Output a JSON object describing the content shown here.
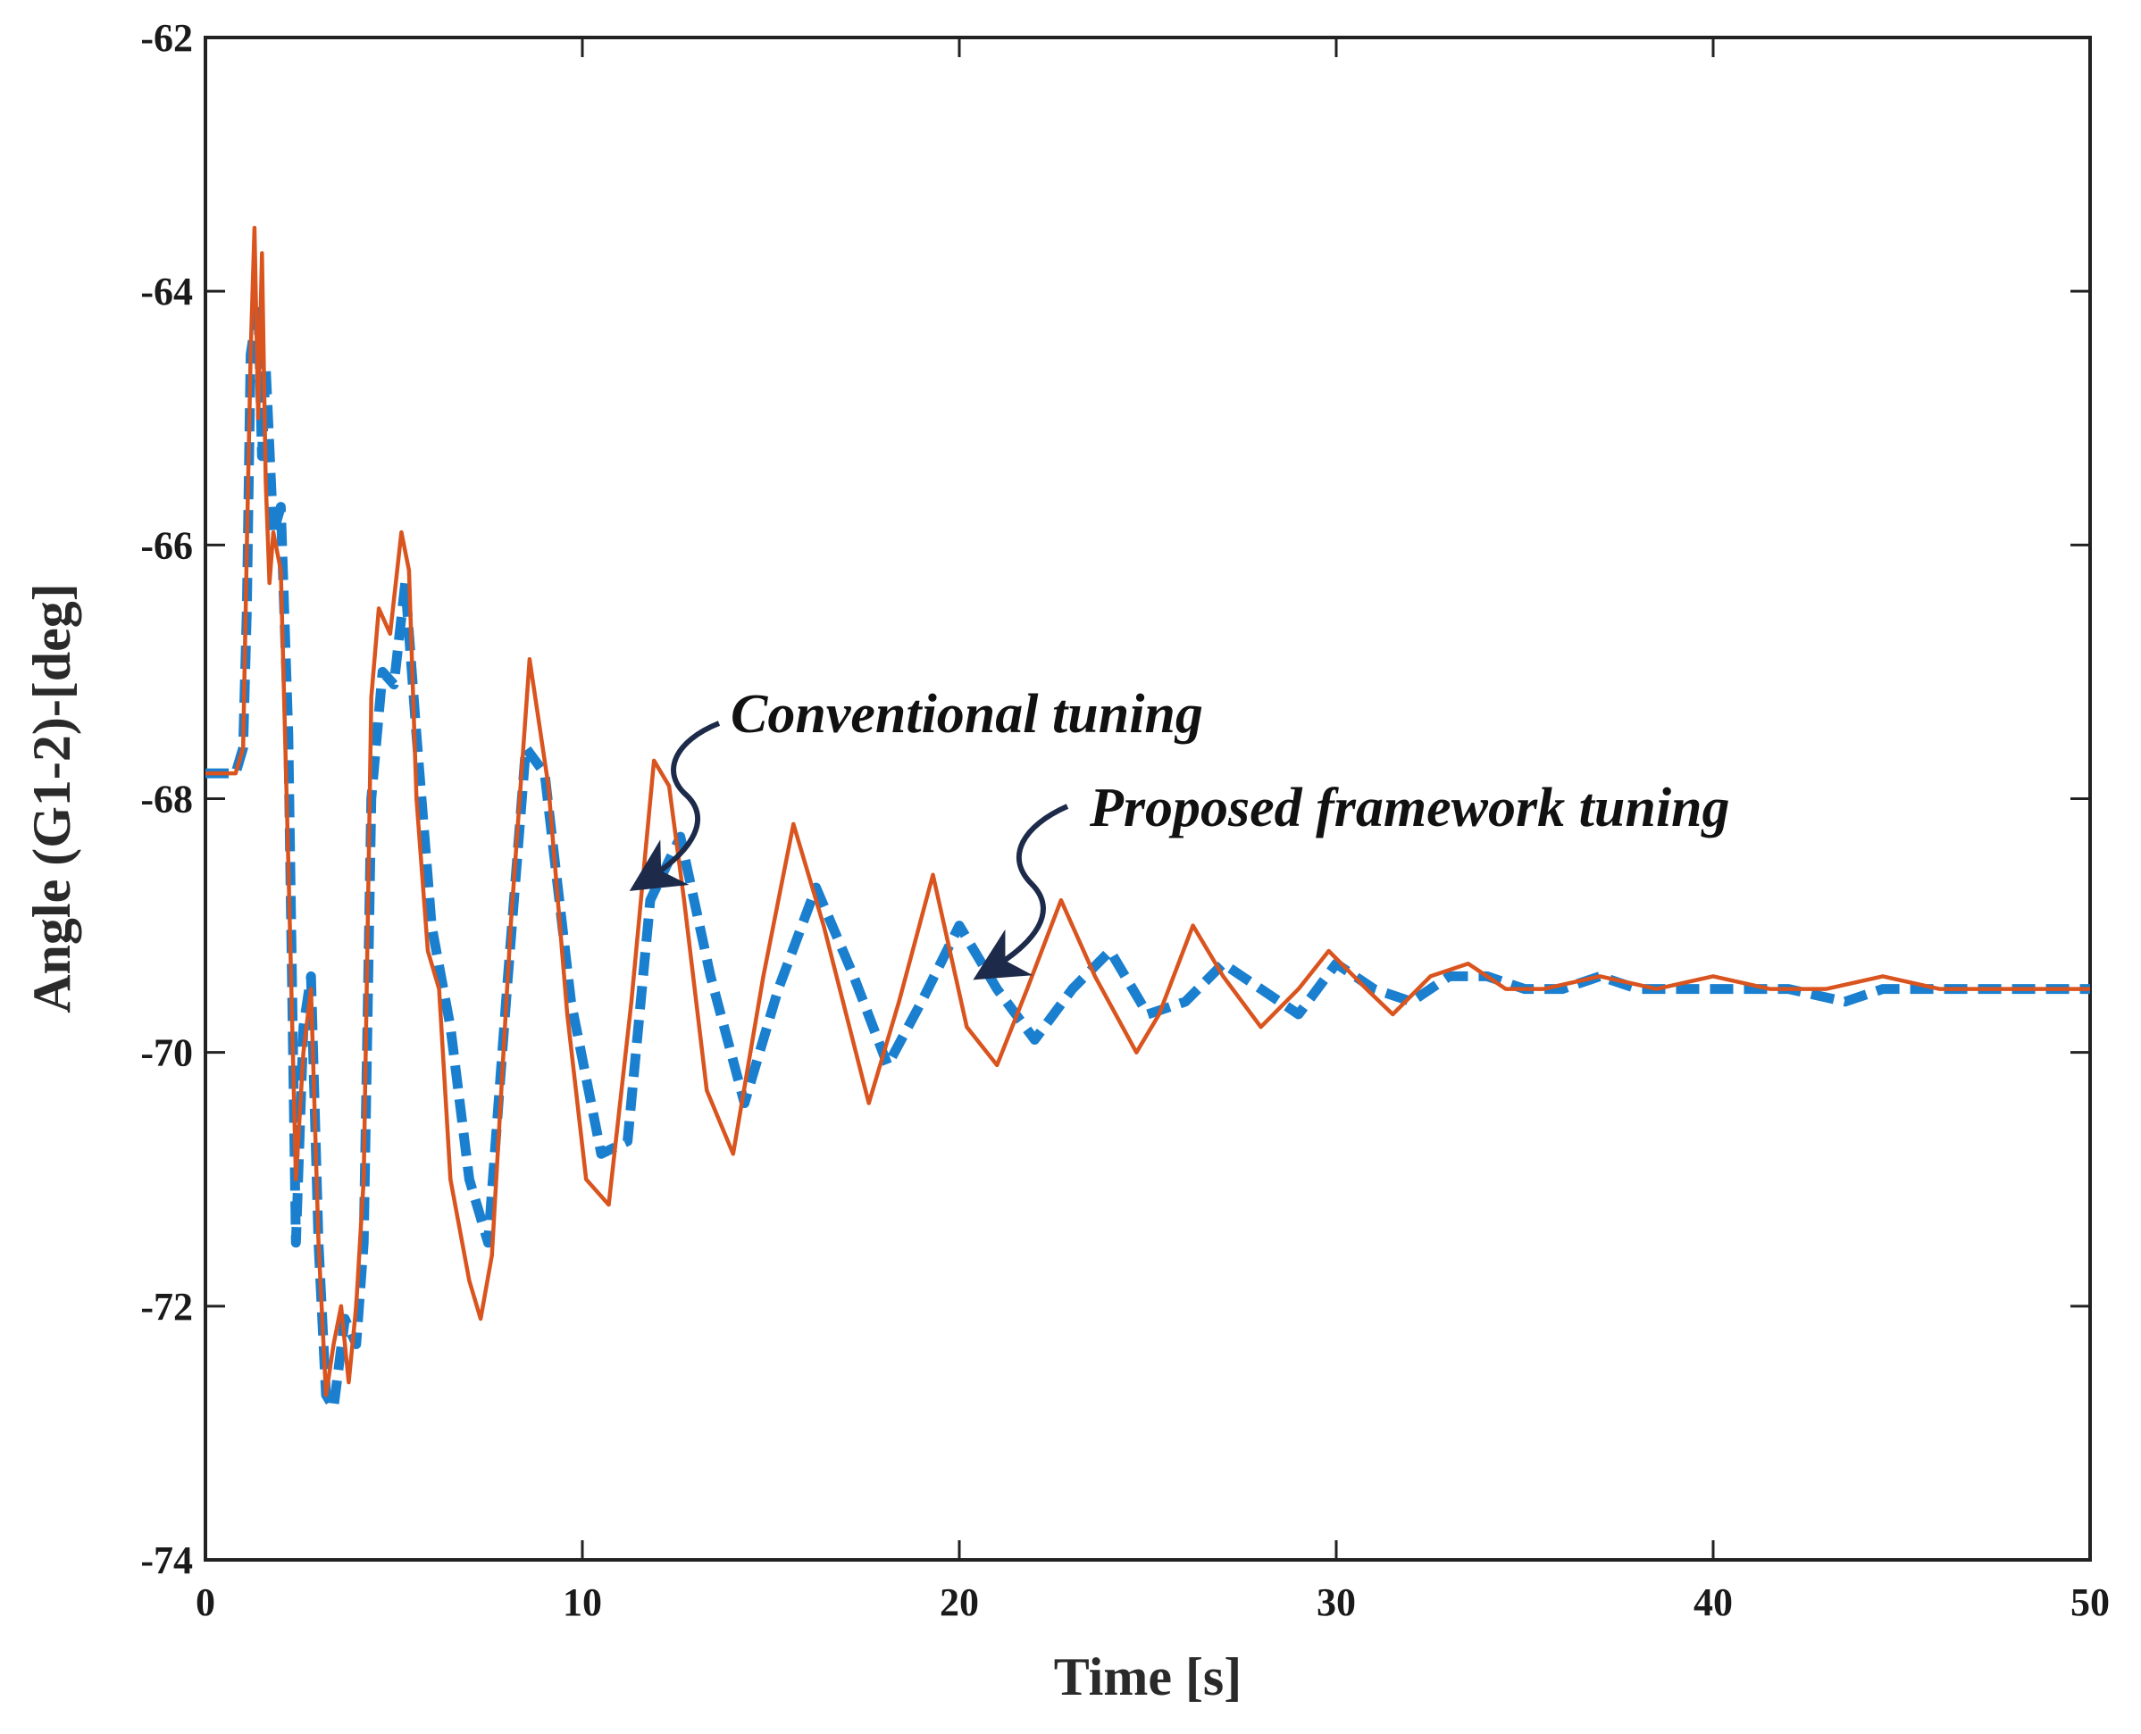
{
  "chart_data": {
    "type": "line",
    "title": "",
    "xlabel": "Time [s]",
    "ylabel": "Angle (G1-2)-[deg]",
    "xlim": [
      0,
      50
    ],
    "ylim": [
      -74,
      -62
    ],
    "xticks": [
      0,
      10,
      20,
      30,
      40,
      50
    ],
    "yticks": [
      -74,
      -72,
      -70,
      -68,
      -66,
      -64,
      -62
    ],
    "grid": false,
    "series": [
      {
        "name": "Conventional tuning",
        "style": "solid",
        "color": "#d9541e",
        "x": [
          0,
          0.8,
          1.0,
          1.1,
          1.2,
          1.3,
          1.4,
          1.5,
          1.6,
          1.7,
          1.8,
          2.0,
          2.2,
          2.4,
          2.6,
          2.8,
          3.0,
          3.2,
          3.4,
          3.6,
          3.8,
          4.0,
          4.2,
          4.4,
          4.6,
          4.9,
          5.2,
          5.4,
          5.6,
          5.9,
          6.2,
          6.5,
          7.0,
          7.3,
          7.6,
          8.1,
          8.6,
          9.1,
          9.6,
          10.1,
          10.7,
          11.3,
          11.9,
          12.3,
          12.7,
          13.3,
          14.0,
          14.8,
          15.6,
          16.4,
          17.6,
          18.4,
          19.3,
          20.2,
          21.0,
          21.8,
          22.7,
          23.6,
          24.7,
          25.3,
          26.2,
          27.0,
          28.0,
          29.0,
          29.8,
          30.8,
          31.5,
          32.5,
          33.5,
          34.5,
          35.5,
          37.0,
          38.5,
          40.0,
          41.5,
          43.0,
          44.5,
          46.0,
          48.0,
          50.0
        ],
        "values": [
          -67.8,
          -67.8,
          -67.6,
          -66.0,
          -64.5,
          -63.5,
          -65.0,
          -63.7,
          -65.5,
          -66.3,
          -65.9,
          -66.2,
          -68.5,
          -71.0,
          -70.0,
          -69.5,
          -71.5,
          -72.7,
          -72.3,
          -72.0,
          -72.6,
          -72.0,
          -71.0,
          -67.2,
          -66.5,
          -66.7,
          -65.9,
          -66.2,
          -68.0,
          -69.2,
          -69.5,
          -71.0,
          -71.8,
          -72.1,
          -71.6,
          -69.0,
          -66.9,
          -67.9,
          -69.7,
          -71.0,
          -71.2,
          -69.6,
          -67.7,
          -67.9,
          -68.8,
          -70.3,
          -70.8,
          -69.4,
          -68.2,
          -69.0,
          -70.4,
          -69.6,
          -68.6,
          -69.8,
          -70.1,
          -69.5,
          -68.8,
          -69.4,
          -70.0,
          -69.7,
          -69.0,
          -69.4,
          -69.8,
          -69.5,
          -69.2,
          -69.5,
          -69.7,
          -69.4,
          -69.3,
          -69.5,
          -69.5,
          -69.4,
          -69.5,
          -69.4,
          -69.5,
          -69.5,
          -69.4,
          -69.5,
          -69.5,
          -69.5
        ]
      },
      {
        "name": "Proposed framework tuning",
        "style": "dashed",
        "color": "#1a7fce",
        "x": [
          0,
          0.8,
          1.0,
          1.1,
          1.2,
          1.4,
          1.5,
          1.6,
          1.8,
          2.0,
          2.2,
          2.4,
          2.6,
          2.8,
          3.0,
          3.2,
          3.4,
          3.7,
          4.0,
          4.2,
          4.4,
          4.7,
          5.0,
          5.3,
          5.6,
          6.0,
          6.5,
          7.0,
          7.5,
          8.0,
          8.5,
          9.0,
          9.7,
          10.5,
          11.2,
          11.8,
          12.6,
          13.4,
          14.3,
          15.2,
          16.2,
          17.2,
          18.1,
          19.0,
          20.0,
          21.0,
          22.0,
          23.0,
          24.0,
          25.0,
          26.0,
          27.0,
          28.0,
          29.0,
          30.0,
          31.0,
          32.0,
          33.0,
          34.0,
          35.0,
          36.0,
          37.0,
          38.0,
          40.0,
          42.0,
          43.5,
          44.5,
          46.0,
          48.0,
          50.0
        ],
        "values": [
          -67.8,
          -67.8,
          -67.6,
          -66.5,
          -64.5,
          -64.1,
          -65.3,
          -64.6,
          -65.9,
          -65.7,
          -67.5,
          -71.5,
          -69.8,
          -69.4,
          -71.5,
          -72.7,
          -72.8,
          -72.1,
          -72.3,
          -71.5,
          -68.0,
          -67.0,
          -67.1,
          -66.3,
          -67.5,
          -69.0,
          -69.8,
          -71.0,
          -71.5,
          -69.5,
          -67.6,
          -67.8,
          -69.6,
          -70.8,
          -70.7,
          -68.8,
          -68.3,
          -69.4,
          -70.4,
          -69.5,
          -68.7,
          -69.4,
          -70.1,
          -69.6,
          -69.0,
          -69.5,
          -69.9,
          -69.5,
          -69.2,
          -69.7,
          -69.6,
          -69.3,
          -69.5,
          -69.7,
          -69.3,
          -69.5,
          -69.6,
          -69.4,
          -69.4,
          -69.5,
          -69.5,
          -69.4,
          -69.5,
          -69.5,
          -69.5,
          -69.6,
          -69.5,
          -69.5,
          -69.5,
          -69.5
        ]
      }
    ],
    "annotations": [
      {
        "text": "Conventional tuning",
        "target_series": "Conventional tuning"
      },
      {
        "text": "Proposed framework tuning",
        "target_series": "Proposed framework tuning"
      }
    ],
    "colors": {
      "axes": "#222222",
      "arrow": "#1d2a4a"
    }
  }
}
